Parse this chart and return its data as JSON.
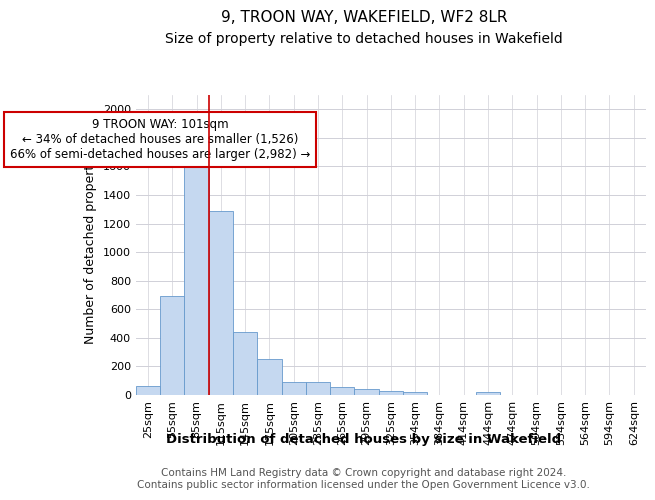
{
  "title": "9, TROON WAY, WAKEFIELD, WF2 8LR",
  "subtitle": "Size of property relative to detached houses in Wakefield",
  "xlabel": "Distribution of detached houses by size in Wakefield",
  "ylabel": "Number of detached properties",
  "bar_labels": [
    "25sqm",
    "55sqm",
    "85sqm",
    "115sqm",
    "145sqm",
    "175sqm",
    "205sqm",
    "235sqm",
    "265sqm",
    "295sqm",
    "325sqm",
    "354sqm",
    "384sqm",
    "414sqm",
    "444sqm",
    "474sqm",
    "504sqm",
    "534sqm",
    "564sqm",
    "594sqm",
    "624sqm"
  ],
  "bar_values": [
    65,
    695,
    1640,
    1285,
    440,
    255,
    90,
    90,
    55,
    40,
    30,
    18,
    0,
    0,
    18,
    0,
    0,
    0,
    0,
    0,
    0
  ],
  "bar_color": "#c5d8f0",
  "bar_edge_color": "#6699cc",
  "vline_color": "#cc0000",
  "vline_pos": 3,
  "annotation_text": "9 TROON WAY: 101sqm\n← 34% of detached houses are smaller (1,526)\n66% of semi-detached houses are larger (2,982) →",
  "annotation_box_color": "#cc0000",
  "annotation_facecolor": "white",
  "ylim": [
    0,
    2100
  ],
  "yticks": [
    0,
    200,
    400,
    600,
    800,
    1000,
    1200,
    1400,
    1600,
    1800,
    2000
  ],
  "grid_color": "#d0d0d8",
  "footnote": "Contains HM Land Registry data © Crown copyright and database right 2024.\nContains public sector information licensed under the Open Government Licence v3.0.",
  "bg_color": "#ffffff",
  "title_fontsize": 11,
  "subtitle_fontsize": 10,
  "xlabel_fontsize": 9.5,
  "ylabel_fontsize": 9,
  "tick_fontsize": 8,
  "footnote_fontsize": 7.5
}
